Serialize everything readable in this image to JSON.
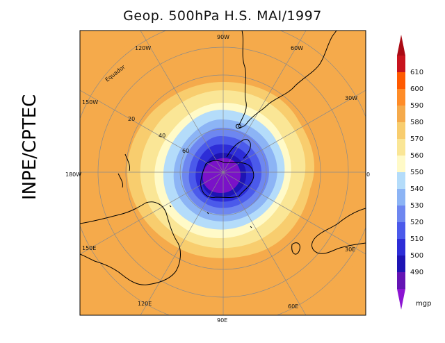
{
  "title": "Geop. 500hPa H.S. MAI/1997",
  "side_label": "INPE/CPTEC",
  "equator_label": "Equador",
  "longitude_labels": {
    "top": "90W",
    "top_right": "60W",
    "right_upper": "30W",
    "right": "0",
    "right_lower": "30E",
    "bottom_right": "60E",
    "bottom": "90E",
    "bottom_left": "120E",
    "left_lower": "150E",
    "left": "180W",
    "left_upper": "150W",
    "top_left": "120W"
  },
  "latitude_labels": [
    "20",
    "40",
    "60"
  ],
  "colorbar": {
    "unit": "mgp",
    "levels": [
      "610",
      "600",
      "590",
      "580",
      "570",
      "560",
      "550",
      "540",
      "530",
      "520",
      "510",
      "500",
      "490"
    ],
    "colors": [
      "#c8141e",
      "#ff5a00",
      "#ff8c28",
      "#f5aa4b",
      "#f8cd6e",
      "#fae696",
      "#fffac8",
      "#b4dcfa",
      "#8cb4f5",
      "#6e87f0",
      "#4b5aeb",
      "#2d2dd7",
      "#1e14b4",
      "#6414b4"
    ],
    "top_arrow_color": "#aa0a14",
    "bottom_arrow_color": "#8c14d2"
  },
  "field_colors": {
    "outer": "#f5aa4b",
    "c570": "#f8cd6e",
    "c560": "#fae696",
    "c550": "#fffac8",
    "c540": "#b4dcfa",
    "c530": "#8cb4f5",
    "c520": "#6e87f0",
    "c510": "#4b5aeb",
    "c500": "#2d2dd7",
    "c490": "#1e14b4",
    "core": "#7a12c8"
  }
}
